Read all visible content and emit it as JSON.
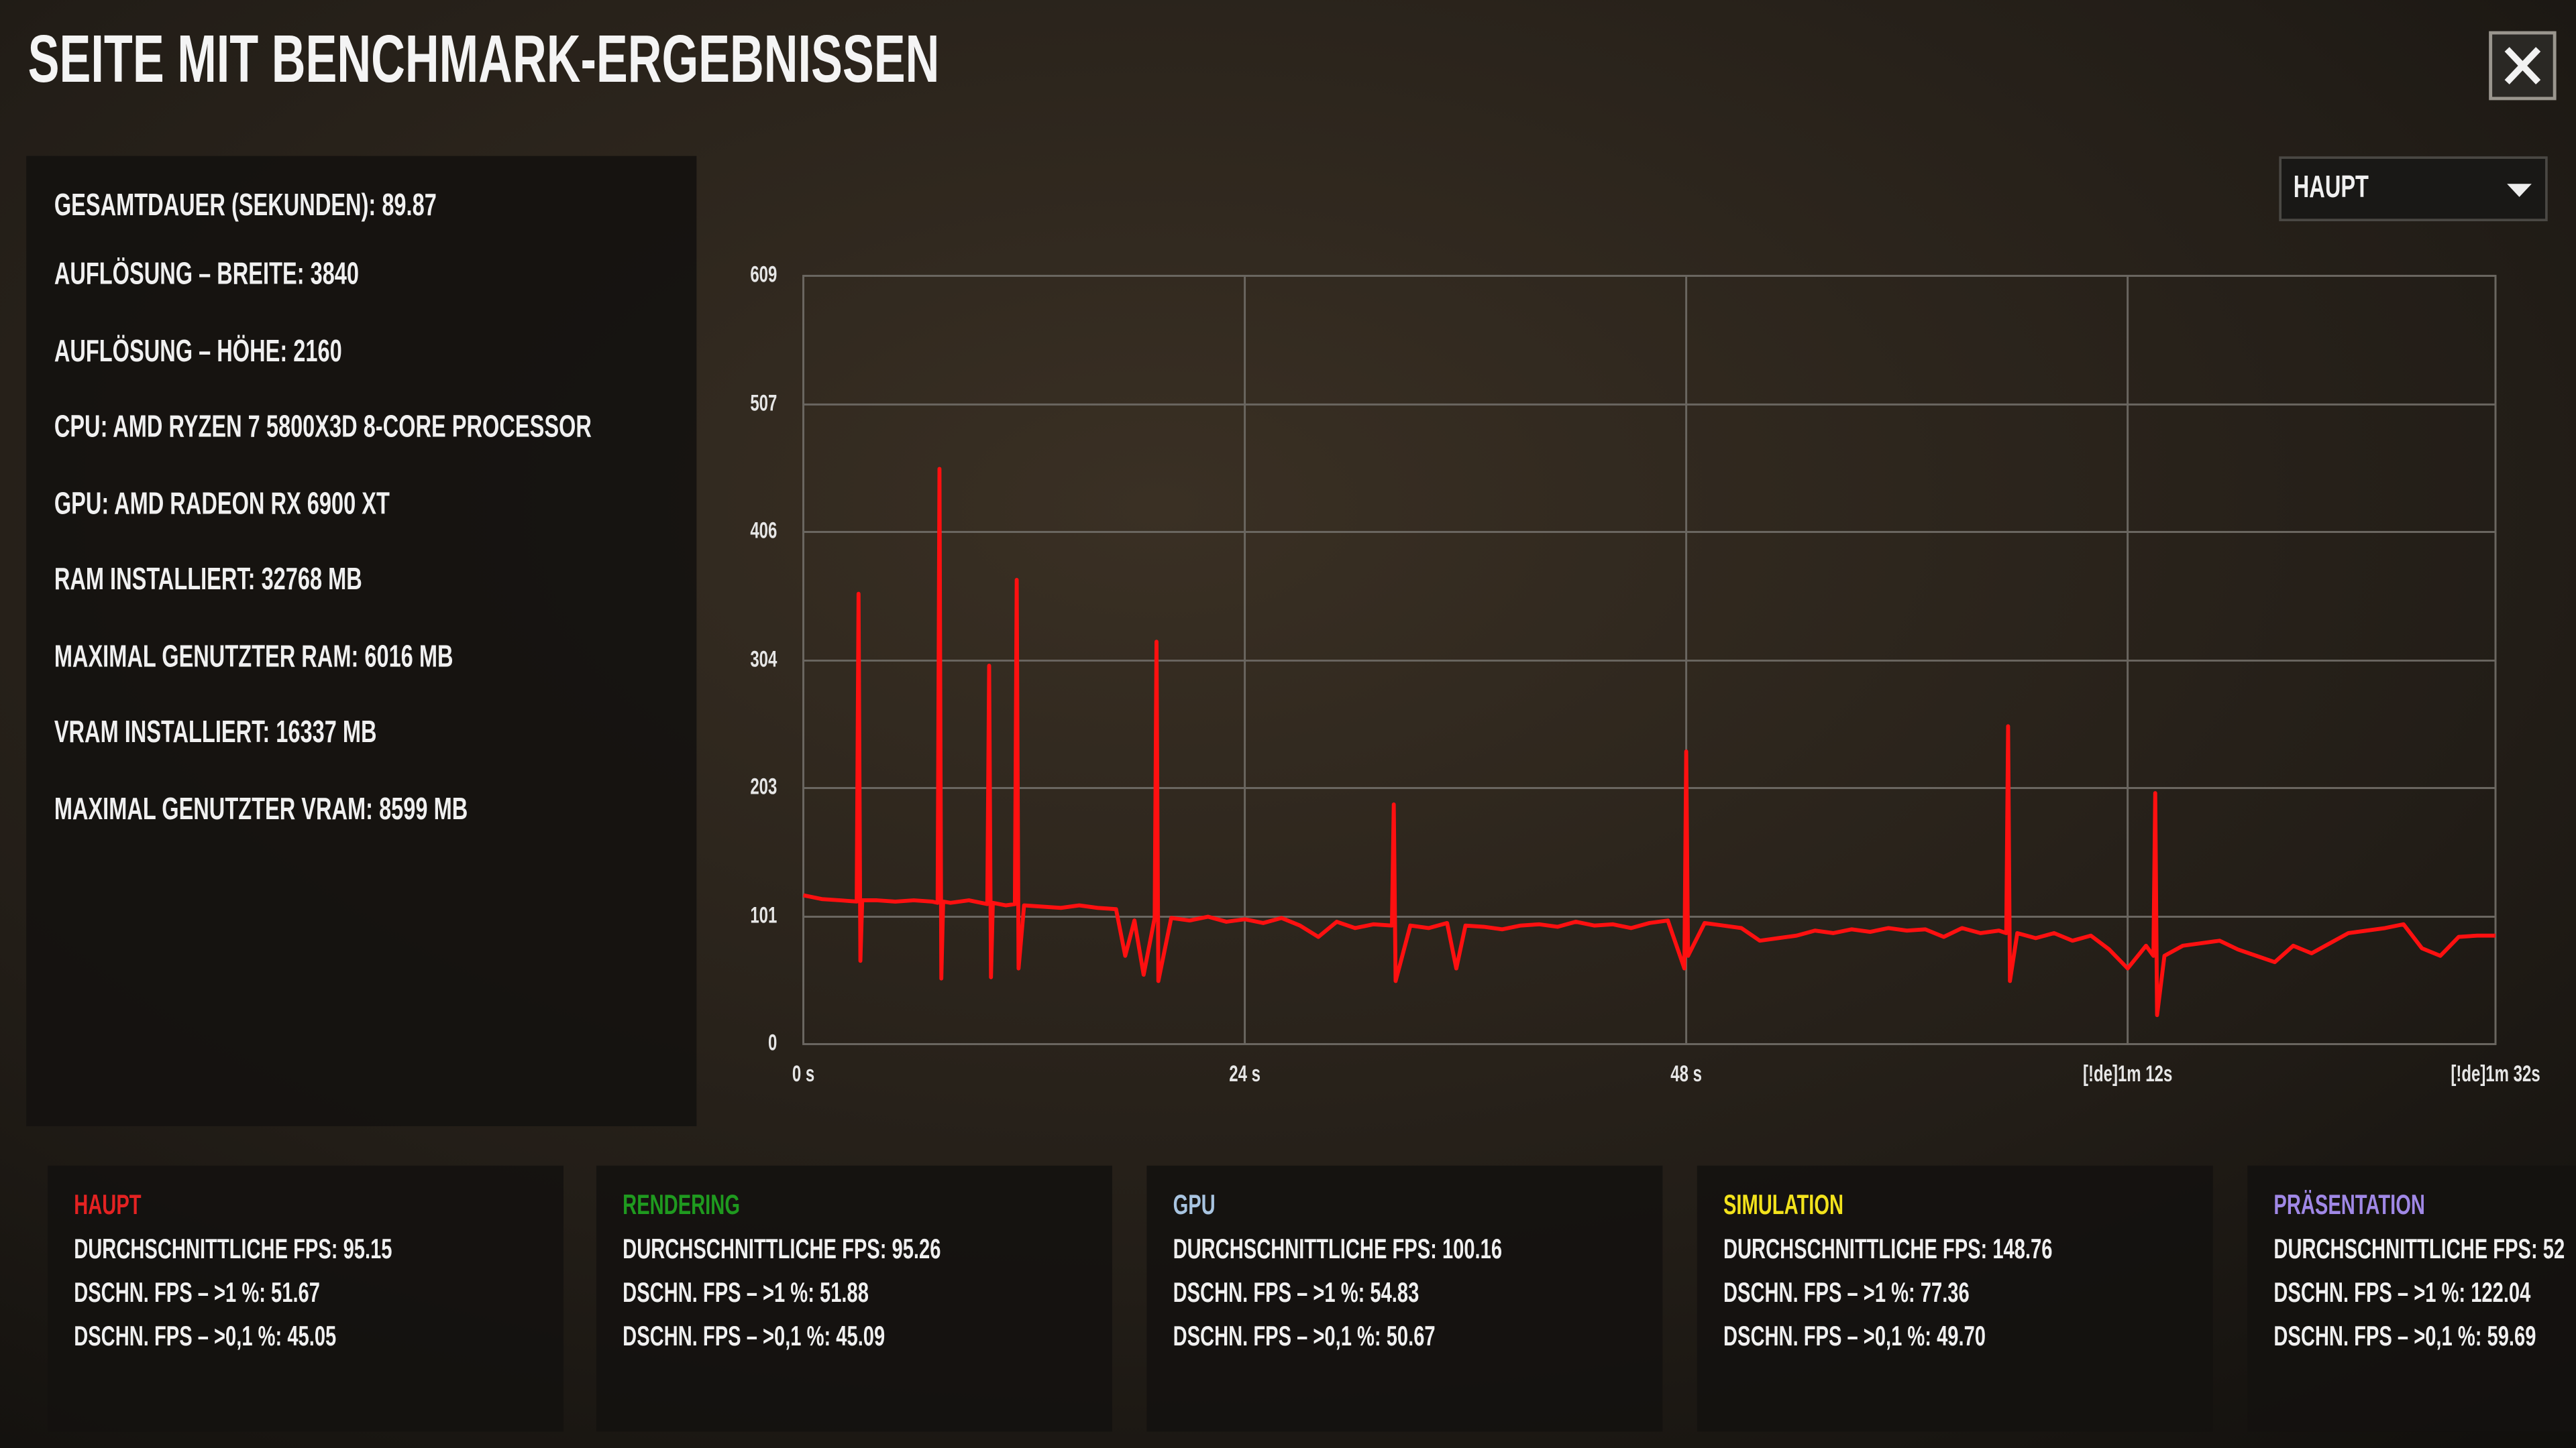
{
  "header": {
    "title": "SEITE MIT BENCHMARK-ERGEBNISSEN"
  },
  "info": [
    "GESAMTDAUER (SEKUNDEN): 89.87",
    "AUFLÖSUNG – BREITE: 3840",
    "AUFLÖSUNG – HÖHE: 2160",
    "CPU: AMD RYZEN 7 5800X3D 8-CORE PROCESSOR",
    "GPU: AMD RADEON RX 6900 XT",
    "RAM INSTALLIERT: 32768 MB",
    "MAXIMAL GENUTZTER RAM: 6016 MB",
    "VRAM INSTALLIERT: 16337 MB",
    "MAXIMAL GENUTZTER VRAM: 8599 MB"
  ],
  "dropdown": {
    "selected": "HAUPT"
  },
  "chart_data": {
    "type": "line",
    "color": "#ff1010",
    "grid": true,
    "x": [
      0,
      1,
      2,
      2.9,
      3.0,
      3.1,
      3.2,
      4,
      5,
      6,
      7,
      7.3,
      7.4,
      7.5,
      7.6,
      8,
      9,
      10,
      10.1,
      10.2,
      10.3,
      11,
      11.5,
      11.6,
      11.7,
      12,
      13,
      14,
      15,
      16,
      17,
      17.5,
      18,
      18.5,
      19.1,
      19.2,
      19.3,
      20,
      21,
      22,
      23,
      24,
      25,
      26,
      27,
      28,
      29,
      30,
      31,
      32,
      32.1,
      32.2,
      33,
      34,
      35,
      35.5,
      36,
      37,
      38,
      39,
      40,
      41,
      42,
      43,
      44,
      45,
      46,
      47,
      47.9,
      48,
      48.1,
      49,
      50,
      51,
      52,
      53,
      54,
      55,
      56,
      57,
      58,
      59,
      60,
      61,
      62,
      63,
      64,
      65,
      65.4,
      65.5,
      65.6,
      66,
      67,
      68,
      69,
      70,
      71,
      72,
      73,
      73.4,
      73.5,
      73.6,
      74,
      75,
      76,
      77,
      78,
      79,
      80,
      81,
      82,
      83,
      84,
      85,
      86,
      87,
      88,
      89,
      90,
      91,
      92
    ],
    "values": [
      118,
      115,
      114,
      113,
      357,
      66,
      114,
      114,
      113,
      114,
      113,
      112,
      456,
      52,
      113,
      112,
      114,
      111,
      300,
      53,
      112,
      110,
      111,
      368,
      60,
      110,
      109,
      108,
      110,
      108,
      107,
      70,
      98,
      55,
      100,
      319,
      50,
      100,
      98,
      101,
      97,
      99,
      96,
      100,
      94,
      85,
      97,
      92,
      95,
      94,
      190,
      50,
      94,
      92,
      96,
      60,
      94,
      93,
      91,
      94,
      95,
      93,
      97,
      94,
      95,
      92,
      96,
      98,
      60,
      232,
      70,
      96,
      94,
      92,
      82,
      84,
      86,
      90,
      88,
      91,
      89,
      92,
      90,
      91,
      85,
      92,
      88,
      90,
      88,
      252,
      50,
      88,
      84,
      88,
      82,
      86,
      75,
      60,
      78,
      70,
      199,
      23,
      70,
      78,
      80,
      82,
      75,
      70,
      65,
      78,
      72,
      80,
      88,
      90,
      92,
      95,
      76,
      70,
      85,
      86,
      86
    ],
    "xlim": [
      0,
      92
    ],
    "xticks": [
      {
        "value": 0,
        "label": "0 s"
      },
      {
        "value": 24,
        "label": "24 s"
      },
      {
        "value": 48,
        "label": "48 s"
      },
      {
        "value": 72,
        "label": "[!de]1m 12s"
      },
      {
        "value": 92,
        "label": "[!de]1m 32s"
      }
    ],
    "ylim": [
      0,
      609
    ],
    "yticks": [
      0,
      101,
      203,
      304,
      406,
      507,
      609
    ]
  },
  "panels": [
    {
      "title": "HAUPT",
      "color": "#e42222",
      "lines": [
        "DURCHSCHNITTLICHE FPS: 95.15",
        "DSCHN. FPS – >1 %: 51.67",
        "DSCHN. FPS – >0,1 %: 45.05"
      ]
    },
    {
      "title": "RENDERING",
      "color": "#1f9a1f",
      "lines": [
        "DURCHSCHNITTLICHE FPS: 95.26",
        "DSCHN. FPS – >1 %: 51.88",
        "DSCHN. FPS – >0,1 %: 45.09"
      ]
    },
    {
      "title": "GPU",
      "color": "#a8c4e0",
      "lines": [
        "DURCHSCHNITTLICHE FPS: 100.16",
        "DSCHN. FPS – >1 %: 54.83",
        "DSCHN. FPS – >0,1 %: 50.67"
      ]
    },
    {
      "title": "SIMULATION",
      "color": "#f2e21c",
      "lines": [
        "DURCHSCHNITTLICHE FPS: 148.76",
        "DSCHN. FPS – >1 %: 77.36",
        "DSCHN. FPS – >0,1 %: 49.70"
      ]
    },
    {
      "title": "PRÄSENTATION",
      "color": "#a088e6",
      "lines": [
        "DURCHSCHNITTLICHE FPS: 52",
        "DSCHN. FPS – >1 %: 122.04",
        "DSCHN. FPS – >0,1 %: 59.69"
      ]
    }
  ]
}
